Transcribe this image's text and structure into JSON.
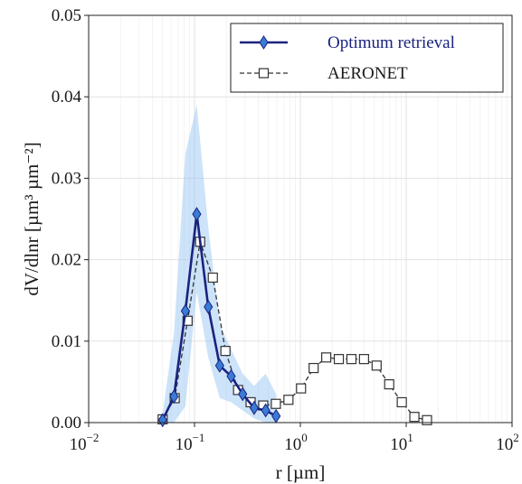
{
  "chart_data": {
    "type": "line",
    "xscale": "log",
    "xlim": [
      0.01,
      100
    ],
    "ylim": [
      0,
      0.05
    ],
    "xlabel": "r [µm]",
    "ylabel": "dV/dlnr [µm³ µm⁻²]",
    "x_ticks": [
      {
        "base": "10",
        "exp": "−2"
      },
      {
        "base": "10",
        "exp": "−1"
      },
      {
        "base": "10",
        "exp": "0"
      },
      {
        "base": "10",
        "exp": "1"
      },
      {
        "base": "10",
        "exp": "2"
      }
    ],
    "y_ticks": [
      "0.00",
      "0.01",
      "0.02",
      "0.03",
      "0.04",
      "0.05"
    ],
    "y_tick_values": [
      0,
      0.01,
      0.02,
      0.03,
      0.04,
      0.05
    ],
    "grid": true,
    "legend_position": "top-right",
    "series": [
      {
        "name": "Optimum retrieval",
        "color": "#1a237e",
        "marker": "diamond",
        "marker_color": "#3a7bd5",
        "x": [
          0.05,
          0.064,
          0.082,
          0.105,
          0.135,
          0.173,
          0.222,
          0.285,
          0.366,
          0.47,
          0.59
        ],
        "y": [
          0.0003,
          0.0032,
          0.0137,
          0.0256,
          0.0142,
          0.007,
          0.0057,
          0.0035,
          0.0018,
          0.0015,
          0.0008
        ]
      },
      {
        "name": "AERONET",
        "color": "#333333",
        "marker": "square",
        "dashed": true,
        "x": [
          0.05,
          0.065,
          0.086,
          0.113,
          0.149,
          0.196,
          0.258,
          0.339,
          0.446,
          0.587,
          0.772,
          1.015,
          1.335,
          1.756,
          2.31,
          3.038,
          3.995,
          5.254,
          6.91,
          9.088,
          11.95,
          15.72
        ],
        "y": [
          0.0004,
          0.003,
          0.0125,
          0.0222,
          0.0178,
          0.0088,
          0.004,
          0.0025,
          0.0021,
          0.0023,
          0.0028,
          0.0042,
          0.0067,
          0.008,
          0.0078,
          0.0078,
          0.0078,
          0.007,
          0.0047,
          0.0025,
          0.0007,
          0.0003
        ]
      }
    ],
    "uncertainty_band": {
      "color": "#8ec1f2",
      "x": [
        0.05,
        0.064,
        0.082,
        0.105,
        0.135,
        0.173,
        0.222,
        0.285,
        0.366,
        0.47,
        0.59
      ],
      "upper": [
        0.0012,
        0.011,
        0.033,
        0.039,
        0.024,
        0.012,
        0.009,
        0.006,
        0.0045,
        0.006,
        0.0035
      ],
      "lower": [
        0.0,
        0.0,
        0.002,
        0.016,
        0.008,
        0.003,
        0.0025,
        0.0015,
        0.0005,
        0.0,
        0.0
      ]
    }
  }
}
